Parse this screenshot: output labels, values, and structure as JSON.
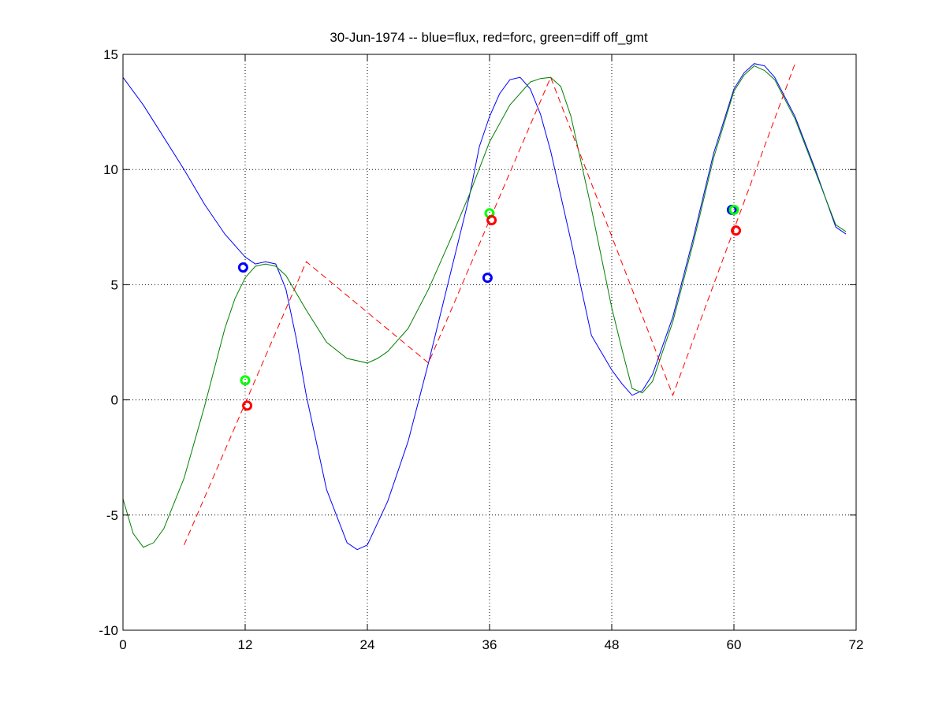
{
  "chart_data": {
    "type": "line",
    "title": "30-Jun-1974 -- blue=flux, red=forc, green=diff off_gmt",
    "xlabel": "",
    "ylabel": "",
    "xlim": [
      0,
      72
    ],
    "ylim": [
      -10,
      15
    ],
    "xticks": [
      0,
      12,
      24,
      36,
      48,
      60,
      72
    ],
    "yticks": [
      -10,
      -5,
      0,
      5,
      10,
      15
    ],
    "grid": true,
    "grid_vertical_lines": [
      12,
      24,
      36,
      48,
      60
    ],
    "series": [
      {
        "color": "#0000ff",
        "style": "solid",
        "x": [
          0,
          2,
          4,
          6,
          8,
          10,
          12,
          13,
          14,
          15,
          16,
          17,
          18,
          20,
          22,
          23,
          24,
          26,
          28,
          30,
          32,
          34,
          35,
          36,
          37,
          38,
          39,
          40,
          41,
          42,
          44,
          46,
          48,
          49,
          50,
          51,
          52,
          54,
          56,
          58,
          60,
          61,
          62,
          63,
          64,
          66,
          68,
          70,
          71
        ],
        "y": [
          14,
          12.8,
          11.4,
          10,
          8.5,
          7.2,
          6.2,
          5.9,
          6.0,
          5.9,
          4.8,
          2.7,
          0.2,
          -3.9,
          -6.2,
          -6.5,
          -6.3,
          -4.4,
          -1.8,
          1.6,
          5.2,
          8.8,
          11.0,
          12.3,
          13.3,
          13.9,
          14.0,
          13.5,
          12.4,
          10.8,
          6.9,
          2.8,
          1.3,
          0.7,
          0.2,
          0.4,
          1.1,
          3.6,
          7.0,
          10.7,
          13.5,
          14.2,
          14.6,
          14.5,
          14.0,
          12.3,
          10.0,
          7.5,
          7.2
        ]
      },
      {
        "color": "#008000",
        "style": "solid",
        "x": [
          0,
          1,
          2,
          3,
          4,
          6,
          8,
          10,
          11,
          12,
          13,
          14,
          15,
          16,
          18,
          20,
          22,
          24,
          25,
          26,
          28,
          30,
          32,
          34,
          36,
          38,
          40,
          41,
          42,
          43,
          44,
          46,
          48,
          49,
          50,
          51,
          52,
          54,
          56,
          58,
          60,
          61,
          62,
          63,
          64,
          66,
          68,
          70,
          71
        ],
        "y": [
          -4.3,
          -5.8,
          -6.4,
          -6.2,
          -5.6,
          -3.4,
          -0.3,
          3.1,
          4.4,
          5.3,
          5.8,
          5.9,
          5.8,
          5.4,
          3.9,
          2.5,
          1.8,
          1.6,
          1.8,
          2.1,
          3.1,
          4.8,
          6.8,
          8.9,
          11.2,
          12.8,
          13.8,
          13.95,
          14.0,
          13.6,
          12.3,
          8.3,
          4.0,
          2.2,
          0.5,
          0.3,
          0.8,
          3.4,
          6.8,
          10.5,
          13.4,
          14.1,
          14.5,
          14.3,
          13.9,
          12.2,
          9.9,
          7.6,
          7.3
        ]
      },
      {
        "color": "#ff0000",
        "style": "dashed",
        "x": [
          6,
          18,
          30,
          42,
          54,
          66
        ],
        "y": [
          -6.3,
          6.0,
          1.6,
          14.0,
          0.2,
          14.6
        ]
      }
    ],
    "markers": [
      {
        "color": "#0000ff",
        "x": 11.8,
        "y": 5.75
      },
      {
        "color": "#0000ff",
        "x": 35.8,
        "y": 5.3
      },
      {
        "color": "#0000ff",
        "x": 59.8,
        "y": 8.25
      },
      {
        "color": "#00ff00",
        "x": 12.0,
        "y": 0.85
      },
      {
        "color": "#00ff00",
        "x": 36.0,
        "y": 8.1
      },
      {
        "color": "#00ff00",
        "x": 60.0,
        "y": 8.25
      },
      {
        "color": "#ff0000",
        "x": 12.2,
        "y": -0.25
      },
      {
        "color": "#ff0000",
        "x": 36.2,
        "y": 7.8
      },
      {
        "color": "#ff0000",
        "x": 60.2,
        "y": 7.35
      }
    ]
  }
}
